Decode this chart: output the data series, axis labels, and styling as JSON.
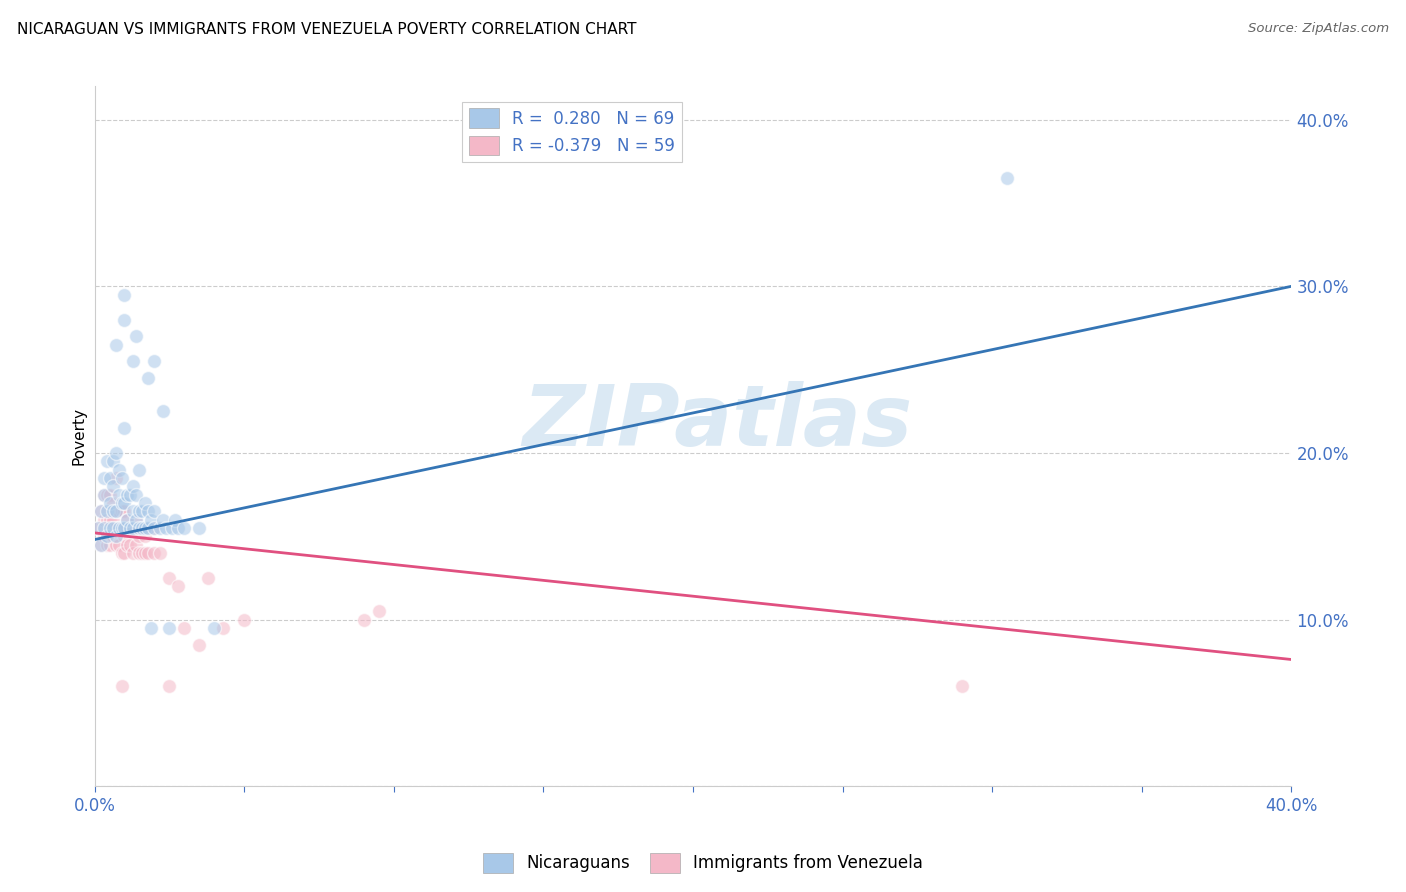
{
  "title": "NICARAGUAN VS IMMIGRANTS FROM VENEZUELA POVERTY CORRELATION CHART",
  "source": "Source: ZipAtlas.com",
  "ylabel": "Poverty",
  "legend_blue_r": "R =  0.280",
  "legend_blue_n": "N = 69",
  "legend_pink_r": "R = -0.379",
  "legend_pink_n": "N = 59",
  "watermark": "ZIPatlas",
  "blue_color": "#a8c8e8",
  "pink_color": "#f4b8c8",
  "blue_line_color": "#3575b5",
  "pink_line_color": "#e05080",
  "blue_scatter": [
    [
      0.001,
      0.155
    ],
    [
      0.002,
      0.145
    ],
    [
      0.002,
      0.165
    ],
    [
      0.003,
      0.155
    ],
    [
      0.003,
      0.175
    ],
    [
      0.003,
      0.185
    ],
    [
      0.004,
      0.15
    ],
    [
      0.004,
      0.165
    ],
    [
      0.004,
      0.195
    ],
    [
      0.005,
      0.155
    ],
    [
      0.005,
      0.17
    ],
    [
      0.005,
      0.185
    ],
    [
      0.006,
      0.155
    ],
    [
      0.006,
      0.165
    ],
    [
      0.006,
      0.18
    ],
    [
      0.006,
      0.195
    ],
    [
      0.007,
      0.15
    ],
    [
      0.007,
      0.165
    ],
    [
      0.007,
      0.2
    ],
    [
      0.008,
      0.155
    ],
    [
      0.008,
      0.175
    ],
    [
      0.008,
      0.19
    ],
    [
      0.009,
      0.155
    ],
    [
      0.009,
      0.17
    ],
    [
      0.009,
      0.185
    ],
    [
      0.01,
      0.155
    ],
    [
      0.01,
      0.17
    ],
    [
      0.01,
      0.215
    ],
    [
      0.011,
      0.16
    ],
    [
      0.011,
      0.175
    ],
    [
      0.012,
      0.155
    ],
    [
      0.012,
      0.175
    ],
    [
      0.013,
      0.155
    ],
    [
      0.013,
      0.165
    ],
    [
      0.013,
      0.18
    ],
    [
      0.014,
      0.16
    ],
    [
      0.014,
      0.175
    ],
    [
      0.015,
      0.155
    ],
    [
      0.015,
      0.165
    ],
    [
      0.015,
      0.19
    ],
    [
      0.016,
      0.155
    ],
    [
      0.016,
      0.165
    ],
    [
      0.017,
      0.155
    ],
    [
      0.017,
      0.17
    ],
    [
      0.018,
      0.155
    ],
    [
      0.018,
      0.165
    ],
    [
      0.019,
      0.095
    ],
    [
      0.019,
      0.16
    ],
    [
      0.02,
      0.155
    ],
    [
      0.02,
      0.165
    ],
    [
      0.022,
      0.155
    ],
    [
      0.023,
      0.16
    ],
    [
      0.024,
      0.155
    ],
    [
      0.025,
      0.095
    ],
    [
      0.026,
      0.155
    ],
    [
      0.027,
      0.16
    ],
    [
      0.028,
      0.155
    ],
    [
      0.03,
      0.155
    ],
    [
      0.035,
      0.155
    ],
    [
      0.04,
      0.095
    ],
    [
      0.007,
      0.265
    ],
    [
      0.01,
      0.28
    ],
    [
      0.01,
      0.295
    ],
    [
      0.013,
      0.255
    ],
    [
      0.014,
      0.27
    ],
    [
      0.018,
      0.245
    ],
    [
      0.02,
      0.255
    ],
    [
      0.023,
      0.225
    ],
    [
      0.305,
      0.365
    ]
  ],
  "pink_scatter": [
    [
      0.001,
      0.155
    ],
    [
      0.002,
      0.145
    ],
    [
      0.002,
      0.165
    ],
    [
      0.003,
      0.15
    ],
    [
      0.003,
      0.16
    ],
    [
      0.003,
      0.175
    ],
    [
      0.004,
      0.145
    ],
    [
      0.004,
      0.16
    ],
    [
      0.004,
      0.175
    ],
    [
      0.005,
      0.145
    ],
    [
      0.005,
      0.16
    ],
    [
      0.005,
      0.175
    ],
    [
      0.006,
      0.15
    ],
    [
      0.006,
      0.16
    ],
    [
      0.006,
      0.17
    ],
    [
      0.007,
      0.145
    ],
    [
      0.007,
      0.155
    ],
    [
      0.007,
      0.165
    ],
    [
      0.007,
      0.185
    ],
    [
      0.008,
      0.145
    ],
    [
      0.008,
      0.155
    ],
    [
      0.008,
      0.165
    ],
    [
      0.009,
      0.14
    ],
    [
      0.009,
      0.155
    ],
    [
      0.009,
      0.165
    ],
    [
      0.01,
      0.14
    ],
    [
      0.01,
      0.15
    ],
    [
      0.01,
      0.165
    ],
    [
      0.011,
      0.145
    ],
    [
      0.011,
      0.16
    ],
    [
      0.012,
      0.145
    ],
    [
      0.012,
      0.155
    ],
    [
      0.013,
      0.14
    ],
    [
      0.013,
      0.155
    ],
    [
      0.014,
      0.145
    ],
    [
      0.014,
      0.16
    ],
    [
      0.015,
      0.14
    ],
    [
      0.015,
      0.15
    ],
    [
      0.016,
      0.14
    ],
    [
      0.016,
      0.155
    ],
    [
      0.017,
      0.14
    ],
    [
      0.017,
      0.15
    ],
    [
      0.018,
      0.14
    ],
    [
      0.018,
      0.155
    ],
    [
      0.02,
      0.14
    ],
    [
      0.02,
      0.155
    ],
    [
      0.022,
      0.14
    ],
    [
      0.025,
      0.125
    ],
    [
      0.028,
      0.12
    ],
    [
      0.03,
      0.095
    ],
    [
      0.035,
      0.085
    ],
    [
      0.038,
      0.125
    ],
    [
      0.043,
      0.095
    ],
    [
      0.05,
      0.1
    ],
    [
      0.09,
      0.1
    ],
    [
      0.095,
      0.105
    ],
    [
      0.009,
      0.06
    ],
    [
      0.025,
      0.06
    ],
    [
      0.29,
      0.06
    ]
  ],
  "xlim": [
    0.0,
    0.4
  ],
  "ylim": [
    0.0,
    0.42
  ],
  "yticks": [
    0.0,
    0.1,
    0.2,
    0.3,
    0.4
  ],
  "ytick_labels": [
    "",
    "10.0%",
    "20.0%",
    "30.0%",
    "40.0%"
  ],
  "xticks": [
    0.0,
    0.05,
    0.1,
    0.15,
    0.2,
    0.25,
    0.3,
    0.35,
    0.4
  ],
  "xtick_labels": [
    "0.0%",
    "",
    "",
    "",
    "",
    "",
    "",
    "",
    "40.0%"
  ],
  "grid_color": "#cccccc",
  "background_color": "#ffffff",
  "scatter_size": 100,
  "scatter_alpha": 0.55,
  "scatter_linewidth": 1.0,
  "scatter_edgecolor": "white",
  "blue_line_intercept": 0.148,
  "blue_line_slope": 0.38,
  "pink_line_intercept": 0.152,
  "pink_line_slope": -0.19
}
